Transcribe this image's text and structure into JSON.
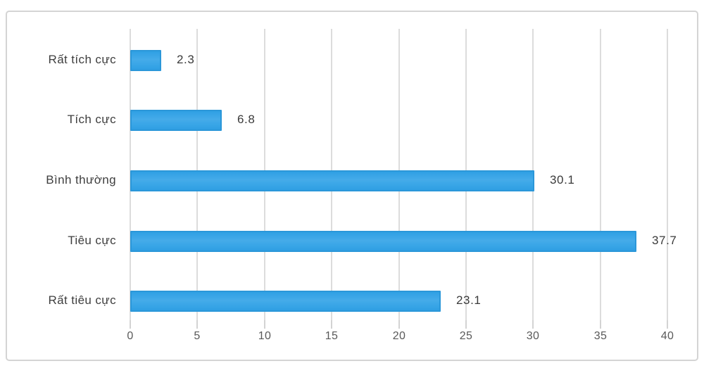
{
  "chart_data": {
    "type": "bar",
    "orientation": "horizontal",
    "title": "",
    "xlabel": "",
    "ylabel": "",
    "categories": [
      "Rất tích cực",
      "Tích cực",
      "Bình thường",
      "Tiêu cực",
      "Rất tiêu cực"
    ],
    "values": [
      2.3,
      6.8,
      30.1,
      37.7,
      23.1
    ],
    "value_labels": [
      "2.3",
      "6.8",
      "30.1",
      "37.7",
      "23.1"
    ],
    "xlim": [
      0,
      40
    ],
    "x_ticks": [
      "0",
      "5",
      "10",
      "15",
      "20",
      "25",
      "30",
      "35",
      "40"
    ],
    "x_tick_values": [
      0,
      5,
      10,
      15,
      20,
      25,
      30,
      35,
      40
    ],
    "grid": "vertical-only",
    "legend": "none",
    "colors": {
      "bar_fill": "#3aa6e7",
      "bar_border": "#2b97d9",
      "gridline": "#dcdcdc",
      "category_text": "#3e3e3e",
      "value_text": "#3a3a3a",
      "tick_text": "#595959",
      "frame_border": "#d4d4d4",
      "background": "#ffffff"
    }
  }
}
